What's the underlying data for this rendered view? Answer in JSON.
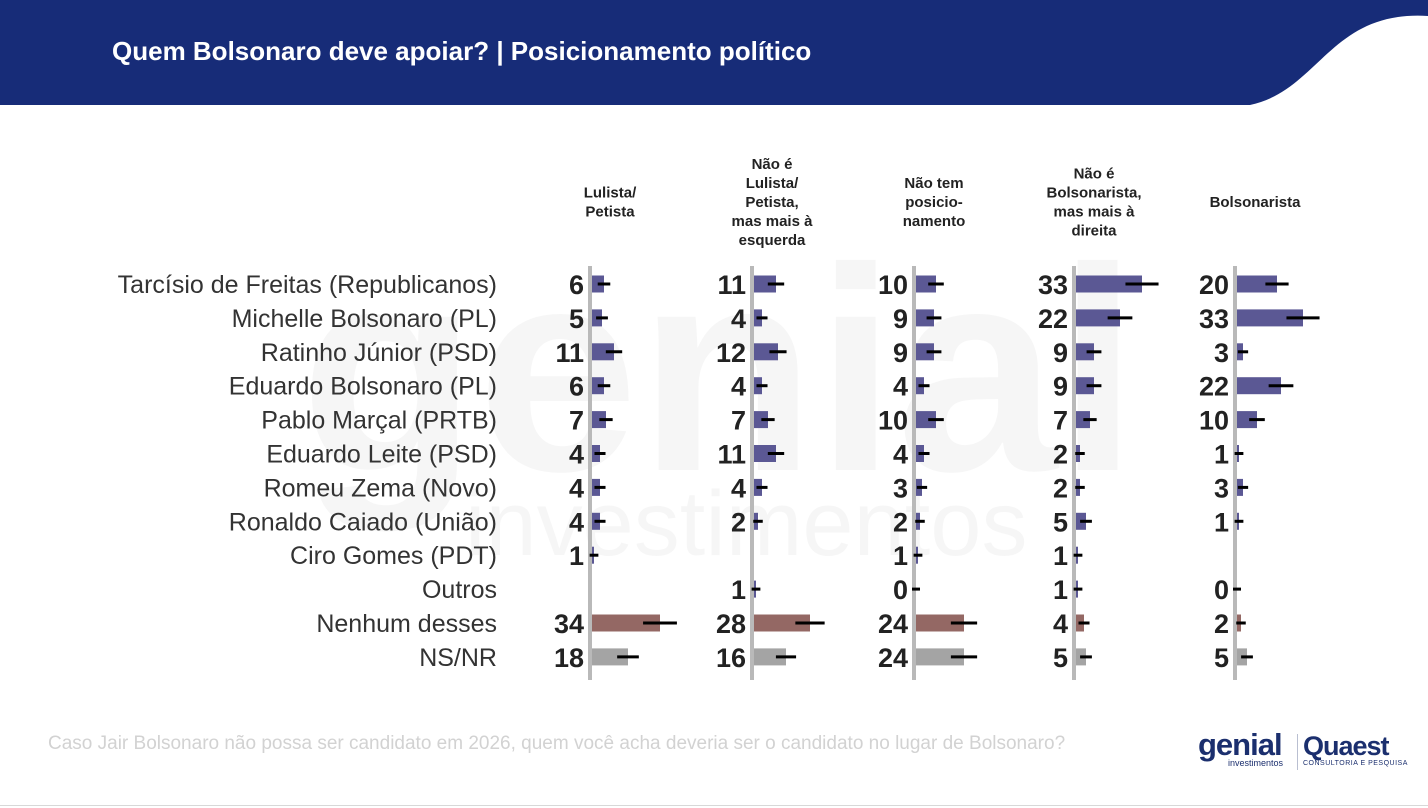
{
  "header": {
    "title": "Quem Bolsonaro deve apoiar?  | Posicionamento político",
    "color": "#172c78"
  },
  "footer": {
    "question": "Caso Jair Bolsonaro não possa ser candidato em 2026, quem você acha deveria ser o candidato no lugar de Bolsonaro?",
    "logo_genial": "genial",
    "logo_genial_sub": "investimentos",
    "logo_quaest": "Quaest",
    "logo_quaest_sub": "CONSULTORIA E PESQUISA"
  },
  "watermark": {
    "word": "genial",
    "sub": "investimentos"
  },
  "chart_data": {
    "type": "bar",
    "orientation": "horizontal",
    "panels": [
      {
        "name": "Lulista/\nPetista"
      },
      {
        "name": "Não é\nLulista/\nPetista,\nmas mais à\nesquerda"
      },
      {
        "name": "Não tem\nposicio-\nnamento"
      },
      {
        "name": "Não é\nBolsonarista,\nmas mais à\ndireita"
      },
      {
        "name": "Bolsonarista"
      }
    ],
    "categories": [
      "Tarcísio de Freitas (Republicanos)",
      "Michelle Bolsonaro (PL)",
      "Ratinho Júnior (PSD)",
      "Eduardo Bolsonaro (PL)",
      "Pablo Marçal (PRTB)",
      "Eduardo Leite (PSD)",
      "Romeu Zema (Novo)",
      "Ronaldo Caiado (União)",
      "Ciro Gomes (PDT)",
      "Outros",
      "Nenhum desses",
      "NS/NR"
    ],
    "values": [
      [
        6,
        11,
        10,
        33,
        20
      ],
      [
        5,
        4,
        9,
        22,
        33
      ],
      [
        11,
        12,
        9,
        9,
        3
      ],
      [
        6,
        4,
        4,
        9,
        22
      ],
      [
        7,
        7,
        10,
        7,
        10
      ],
      [
        4,
        11,
        4,
        2,
        1
      ],
      [
        4,
        4,
        3,
        2,
        3
      ],
      [
        4,
        2,
        2,
        5,
        1
      ],
      [
        1,
        null,
        1,
        1,
        null
      ],
      [
        null,
        1,
        0,
        1,
        0
      ],
      [
        34,
        28,
        24,
        4,
        2
      ],
      [
        18,
        16,
        24,
        5,
        5
      ]
    ],
    "row_colors": [
      "#5b5894",
      "#5b5894",
      "#5b5894",
      "#5b5894",
      "#5b5894",
      "#5b5894",
      "#5b5894",
      "#5b5894",
      "#5b5894",
      "#5b5894",
      "#946864",
      "#a4a4a4"
    ],
    "error_bars": true,
    "axis_line_color": "#b9b9b9"
  }
}
